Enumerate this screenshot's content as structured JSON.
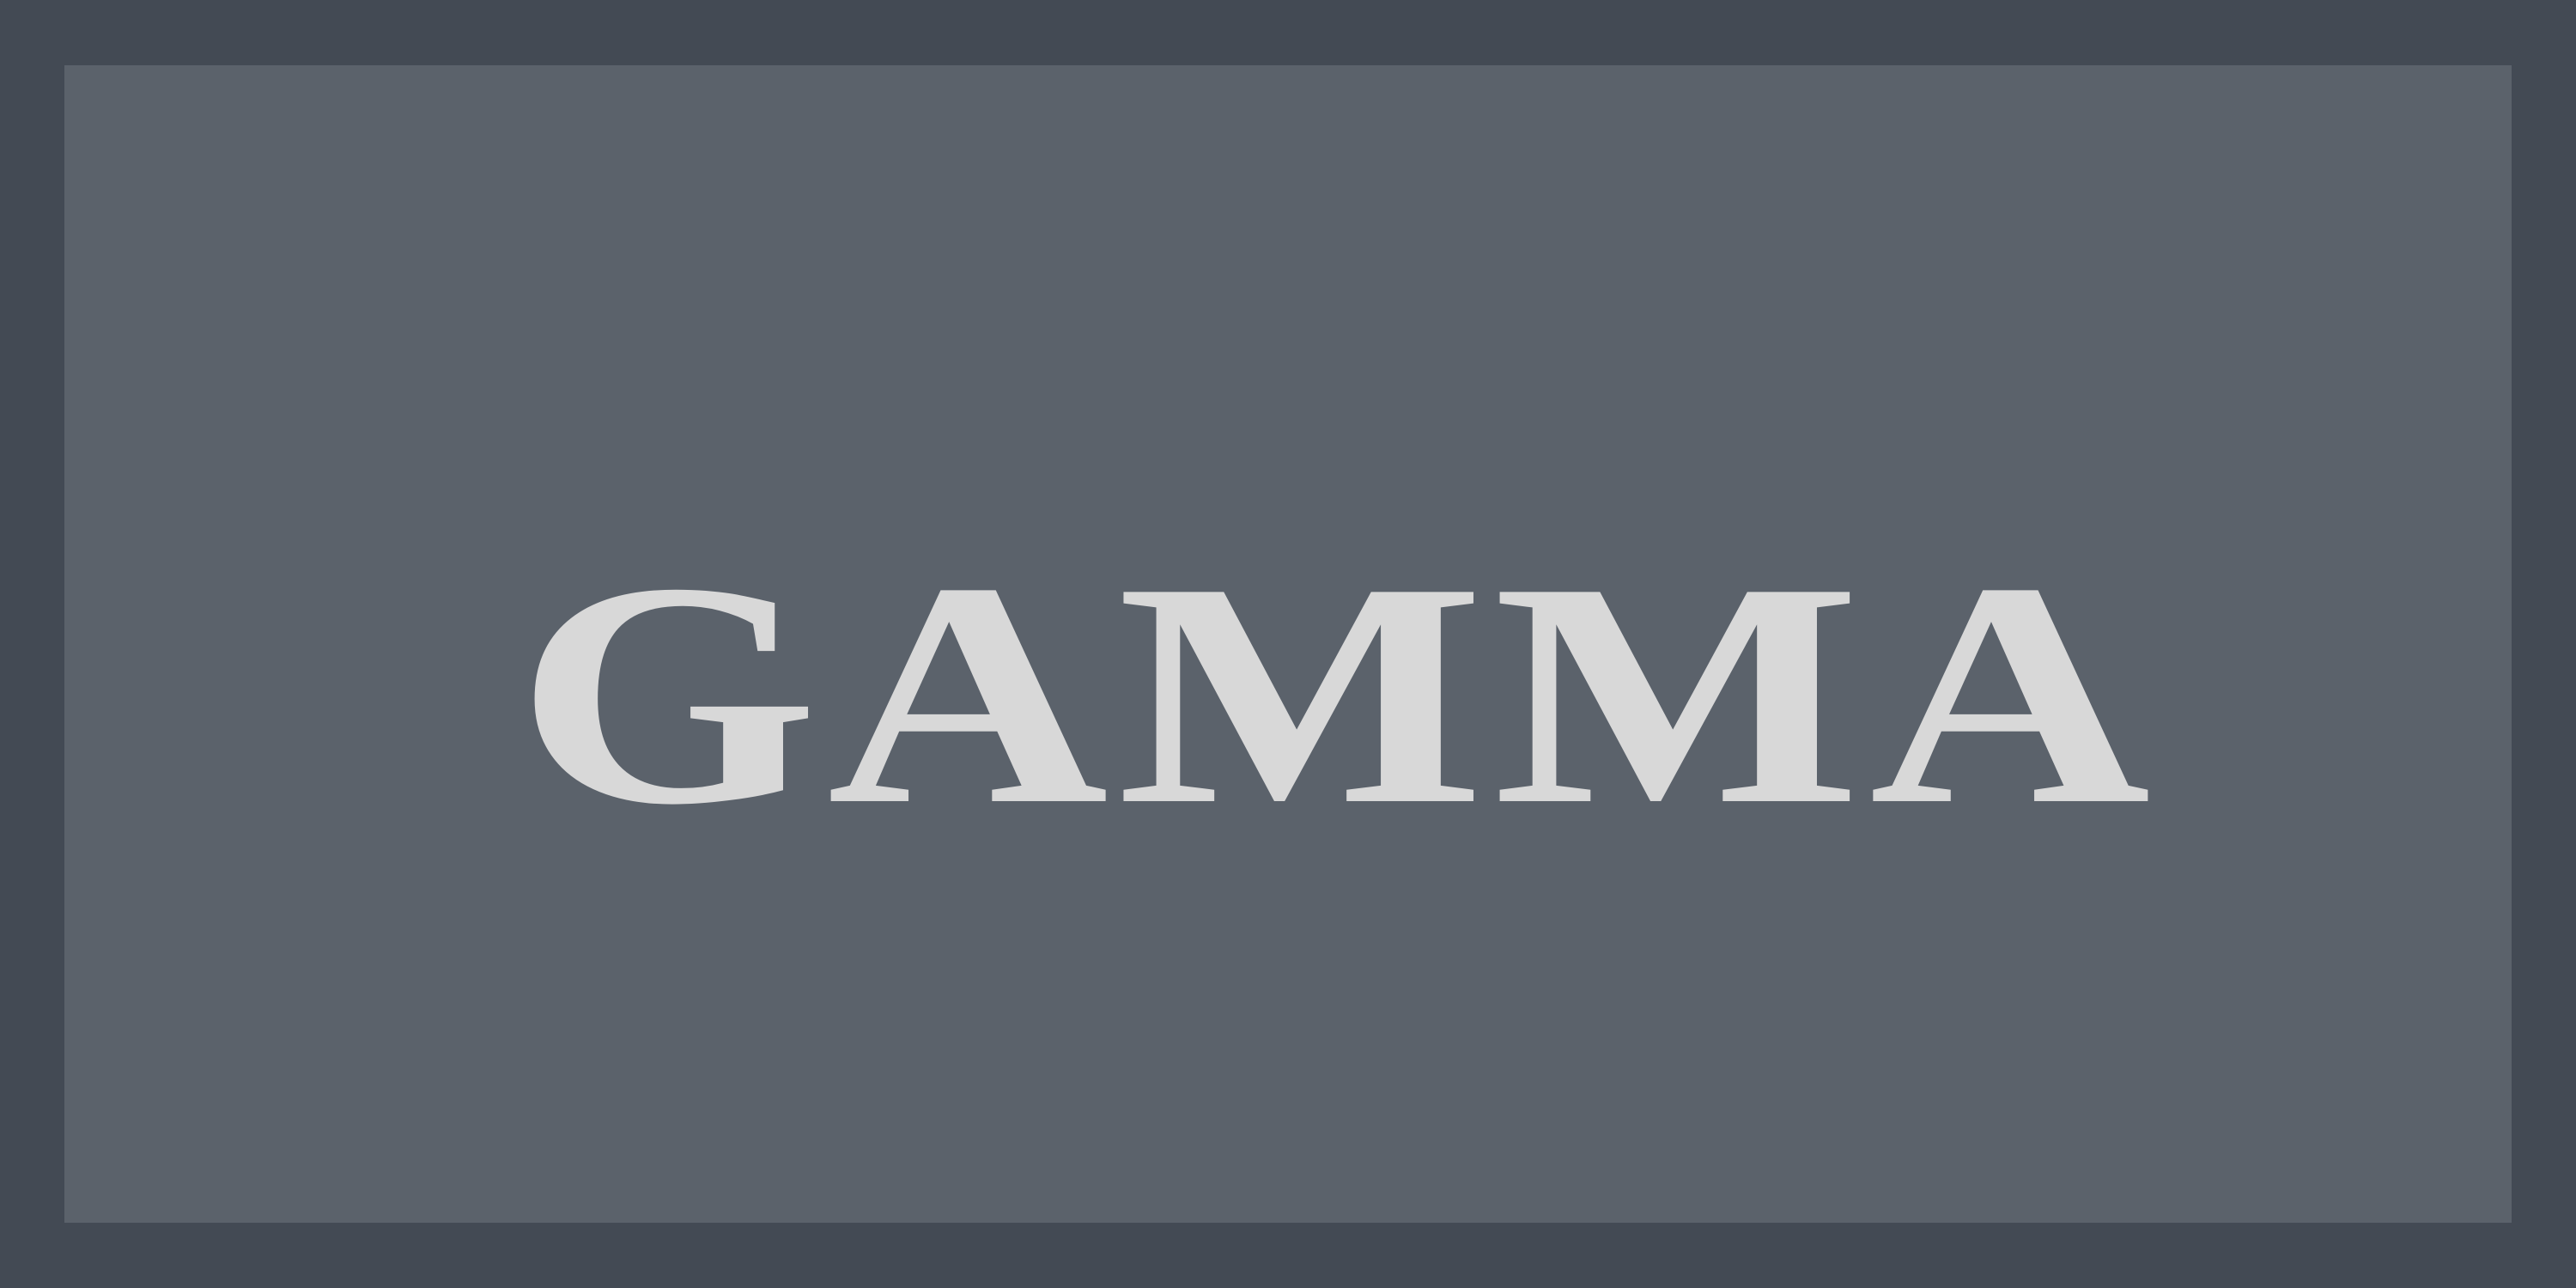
{
  "wordmark": {
    "text": "GAMMA"
  },
  "colors": {
    "outer_frame": "#434a54",
    "inner_panel": "#5b626b",
    "text": "#d8d8d8"
  }
}
